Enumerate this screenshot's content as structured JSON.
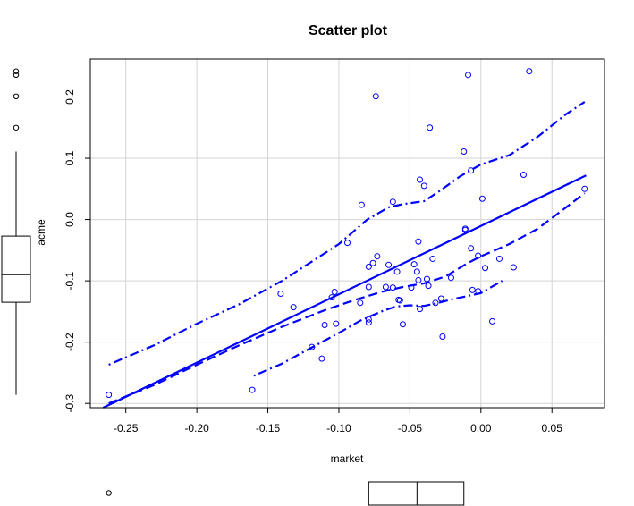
{
  "chart_data": {
    "type": "scatter",
    "title": "Scatter plot",
    "xlabel": "market",
    "ylabel": "acme",
    "xlim": [
      -0.275,
      0.087
    ],
    "ylim": [
      -0.307,
      0.262
    ],
    "x_ticks": [
      -0.25,
      -0.2,
      -0.15,
      -0.1,
      -0.05,
      0.0,
      0.05
    ],
    "x_tick_labels": [
      "-0.25",
      "-0.20",
      "-0.15",
      "-0.10",
      "-0.05",
      "0.00",
      "0.05"
    ],
    "y_ticks": [
      -0.3,
      -0.2,
      -0.1,
      0.0,
      0.1,
      0.2
    ],
    "y_tick_labels": [
      "-0.3",
      "-0.2",
      "-0.1",
      "0.0",
      "0.1",
      "0.2"
    ],
    "grid": true,
    "point_color": "#0000ff",
    "line_color": "#0000ff",
    "points": [
      {
        "x": -0.262,
        "y": -0.286
      },
      {
        "x": -0.161,
        "y": -0.278
      },
      {
        "x": -0.141,
        "y": -0.121
      },
      {
        "x": -0.132,
        "y": -0.143
      },
      {
        "x": -0.119,
        "y": -0.208
      },
      {
        "x": -0.112,
        "y": -0.227
      },
      {
        "x": -0.11,
        "y": -0.172
      },
      {
        "x": -0.105,
        "y": -0.127
      },
      {
        "x": -0.103,
        "y": -0.118
      },
      {
        "x": -0.102,
        "y": -0.17
      },
      {
        "x": -0.094,
        "y": -0.038
      },
      {
        "x": -0.085,
        "y": -0.136
      },
      {
        "x": -0.084,
        "y": 0.024
      },
      {
        "x": -0.079,
        "y": -0.077
      },
      {
        "x": -0.079,
        "y": -0.11
      },
      {
        "x": -0.079,
        "y": -0.163
      },
      {
        "x": -0.079,
        "y": -0.168
      },
      {
        "x": -0.076,
        "y": -0.071
      },
      {
        "x": -0.074,
        "y": 0.201
      },
      {
        "x": -0.073,
        "y": -0.06
      },
      {
        "x": -0.067,
        "y": -0.11
      },
      {
        "x": -0.065,
        "y": -0.074
      },
      {
        "x": -0.062,
        "y": -0.111
      },
      {
        "x": -0.062,
        "y": 0.029
      },
      {
        "x": -0.059,
        "y": -0.085
      },
      {
        "x": -0.058,
        "y": -0.131
      },
      {
        "x": -0.057,
        "y": -0.132
      },
      {
        "x": -0.055,
        "y": -0.171
      },
      {
        "x": -0.049,
        "y": -0.111
      },
      {
        "x": -0.047,
        "y": -0.073
      },
      {
        "x": -0.045,
        "y": -0.085
      },
      {
        "x": -0.044,
        "y": -0.099
      },
      {
        "x": -0.044,
        "y": -0.036
      },
      {
        "x": -0.043,
        "y": -0.146
      },
      {
        "x": -0.043,
        "y": 0.065
      },
      {
        "x": -0.04,
        "y": 0.055
      },
      {
        "x": -0.038,
        "y": -0.097
      },
      {
        "x": -0.037,
        "y": -0.108
      },
      {
        "x": -0.036,
        "y": 0.15
      },
      {
        "x": -0.034,
        "y": -0.064
      },
      {
        "x": -0.032,
        "y": -0.136
      },
      {
        "x": -0.028,
        "y": -0.129
      },
      {
        "x": -0.027,
        "y": -0.191
      },
      {
        "x": -0.021,
        "y": -0.095
      },
      {
        "x": -0.012,
        "y": 0.111
      },
      {
        "x": -0.011,
        "y": -0.015
      },
      {
        "x": -0.011,
        "y": -0.017
      },
      {
        "x": -0.009,
        "y": 0.236
      },
      {
        "x": -0.007,
        "y": 0.08
      },
      {
        "x": -0.007,
        "y": -0.047
      },
      {
        "x": -0.006,
        "y": -0.115
      },
      {
        "x": -0.002,
        "y": -0.059
      },
      {
        "x": -0.002,
        "y": -0.117
      },
      {
        "x": 0.001,
        "y": 0.034
      },
      {
        "x": 0.003,
        "y": -0.079
      },
      {
        "x": 0.008,
        "y": -0.166
      },
      {
        "x": 0.013,
        "y": -0.064
      },
      {
        "x": 0.023,
        "y": -0.078
      },
      {
        "x": 0.03,
        "y": 0.073
      },
      {
        "x": 0.034,
        "y": 0.242
      },
      {
        "x": 0.073,
        "y": 0.05
      }
    ],
    "series": [
      {
        "name": "regression-line",
        "style": "solid",
        "x": [
          -0.266,
          0.074
        ],
        "y": [
          -0.307,
          0.072
        ]
      },
      {
        "name": "smooth-line",
        "style": "dashed",
        "x": [
          -0.262,
          -0.23,
          -0.2,
          -0.17,
          -0.14,
          -0.11,
          -0.09,
          -0.07,
          -0.055,
          -0.04,
          -0.025,
          -0.01,
          0.0,
          0.02,
          0.04,
          0.06,
          0.073
        ],
        "y": [
          -0.3,
          -0.27,
          -0.237,
          -0.205,
          -0.175,
          -0.148,
          -0.132,
          -0.118,
          -0.11,
          -0.104,
          -0.093,
          -0.072,
          -0.06,
          -0.04,
          -0.015,
          0.02,
          0.043
        ]
      },
      {
        "name": "upper-band",
        "style": "dotdash",
        "x": [
          -0.262,
          -0.23,
          -0.2,
          -0.17,
          -0.14,
          -0.12,
          -0.1,
          -0.08,
          -0.065,
          -0.055,
          -0.04,
          -0.03,
          -0.015,
          0.0,
          0.02,
          0.04,
          0.06,
          0.073
        ],
        "y": [
          -0.237,
          -0.205,
          -0.17,
          -0.138,
          -0.1,
          -0.07,
          -0.04,
          0.0,
          0.02,
          0.025,
          0.03,
          0.045,
          0.07,
          0.09,
          0.105,
          0.135,
          0.172,
          0.192
        ]
      },
      {
        "name": "lower-band",
        "style": "dotdash",
        "x": [
          -0.16,
          -0.14,
          -0.12,
          -0.1,
          -0.085,
          -0.07,
          -0.06,
          -0.05,
          -0.04,
          -0.03,
          -0.02,
          -0.01,
          0.0,
          0.015
        ],
        "y": [
          -0.255,
          -0.235,
          -0.21,
          -0.185,
          -0.165,
          -0.15,
          -0.142,
          -0.14,
          -0.141,
          -0.136,
          -0.13,
          -0.125,
          -0.12,
          -0.1
        ]
      }
    ],
    "y_boxplot": {
      "min": -0.286,
      "q1": -0.135,
      "median": -0.09,
      "q3": -0.027,
      "whisker_high": 0.111,
      "outliers": [
        0.15,
        0.201,
        0.236,
        0.242
      ]
    },
    "x_boxplot": {
      "min": -0.161,
      "q1": -0.079,
      "median": -0.045,
      "q3": -0.012,
      "max": 0.073,
      "outliers": [
        -0.262
      ]
    }
  }
}
